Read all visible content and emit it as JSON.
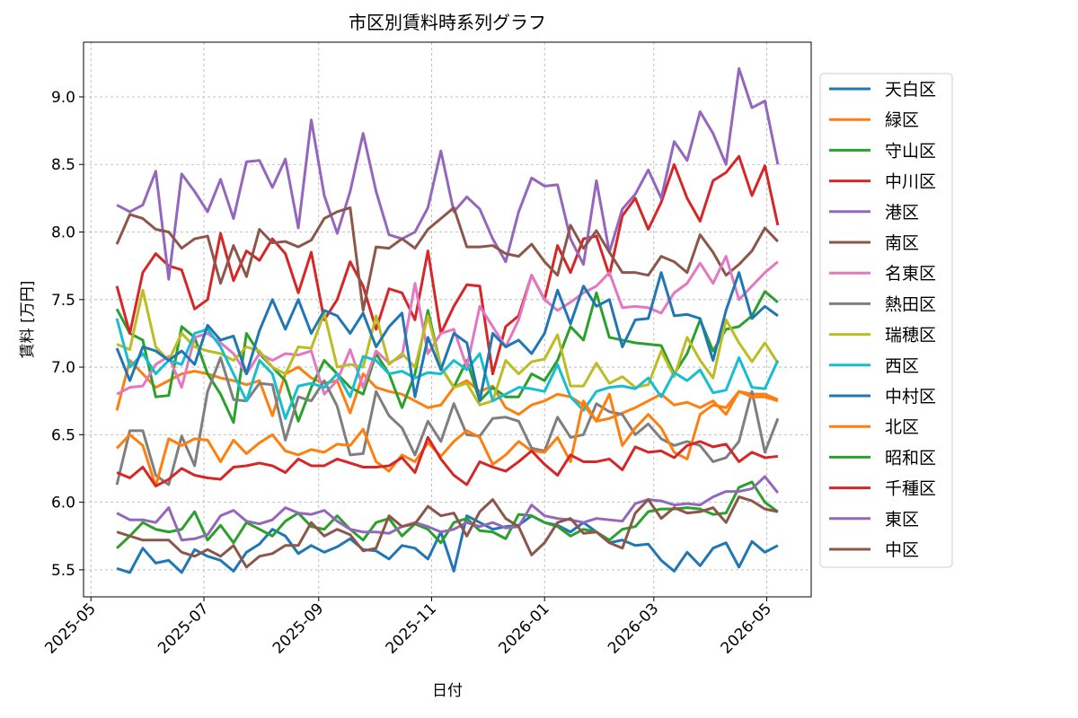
{
  "chart_data": {
    "type": "line",
    "title": "市区別賃料時系列グラフ",
    "xlabel": "日付",
    "ylabel": "賃料 [万円]",
    "x": [
      "2025-05-15",
      "2025-05-22",
      "2025-05-29",
      "2025-06-05",
      "2025-06-12",
      "2025-06-19",
      "2025-06-26",
      "2025-07-03",
      "2025-07-10",
      "2025-07-17",
      "2025-07-24",
      "2025-07-31",
      "2025-08-07",
      "2025-08-14",
      "2025-08-21",
      "2025-08-28",
      "2025-09-04",
      "2025-09-11",
      "2025-09-18",
      "2025-09-25",
      "2025-10-02",
      "2025-10-09",
      "2025-10-16",
      "2025-10-23",
      "2025-10-30",
      "2025-11-06",
      "2025-11-13",
      "2025-11-20",
      "2025-11-27",
      "2025-12-04",
      "2025-12-11",
      "2025-12-18",
      "2025-12-25",
      "2026-01-01",
      "2026-01-08",
      "2026-01-15",
      "2026-01-22",
      "2026-01-29",
      "2026-02-05",
      "2026-02-12",
      "2026-02-19",
      "2026-02-26",
      "2026-03-05",
      "2026-03-12",
      "2026-03-19",
      "2026-03-26",
      "2026-04-02",
      "2026-04-09",
      "2026-04-16",
      "2026-04-23",
      "2026-04-30",
      "2026-05-07"
    ],
    "xlim": [
      "2025-04-27",
      "2026-05-25"
    ],
    "xticks": [
      {
        "value": "2025-05-01",
        "label": "2025-05"
      },
      {
        "value": "2025-07-01",
        "label": "2025-07"
      },
      {
        "value": "2025-09-01",
        "label": "2025-09"
      },
      {
        "value": "2025-11-01",
        "label": "2025-11"
      },
      {
        "value": "2026-01-01",
        "label": "2026-01"
      },
      {
        "value": "2026-03-01",
        "label": "2026-03"
      },
      {
        "value": "2026-05-01",
        "label": "2026-05"
      }
    ],
    "ylim": [
      5.3,
      9.405
    ],
    "yticks": [
      5.5,
      {
        "value": 6,
        "label": "6.0"
      },
      6.5,
      {
        "value": 7,
        "label": "7.0"
      },
      7.5,
      {
        "value": 8,
        "label": "8.0"
      },
      8.5,
      {
        "value": 9,
        "label": "9.0"
      }
    ],
    "grid": true,
    "legend": "outside right",
    "series": [
      {
        "name": "天白区",
        "color": "#1f77b4",
        "values": [
          5.51,
          5.48,
          5.66,
          5.55,
          5.57,
          5.48,
          5.65,
          5.6,
          5.57,
          5.49,
          5.63,
          5.69,
          5.8,
          5.75,
          5.62,
          5.68,
          5.63,
          5.67,
          5.73,
          5.65,
          5.64,
          5.58,
          5.68,
          5.66,
          5.58,
          5.78,
          5.49,
          5.9,
          5.85,
          5.8,
          5.82,
          5.83,
          5.9,
          5.85,
          5.83,
          5.78,
          5.85,
          5.78,
          5.7,
          5.72,
          5.68,
          5.69,
          5.57,
          5.49,
          5.63,
          5.53,
          5.66,
          5.7,
          5.52,
          5.71,
          5.63,
          5.68
        ]
      },
      {
        "name": "緑区",
        "color": "#ff7f0e",
        "values": [
          6.68,
          7.05,
          6.95,
          6.85,
          6.9,
          6.95,
          6.97,
          6.95,
          6.92,
          6.9,
          6.87,
          6.9,
          6.64,
          6.95,
          7.0,
          6.92,
          6.88,
          6.9,
          6.66,
          6.95,
          6.85,
          6.82,
          6.8,
          6.75,
          6.7,
          6.72,
          6.85,
          6.9,
          6.82,
          6.86,
          6.7,
          6.65,
          6.72,
          6.75,
          6.8,
          6.78,
          6.72,
          6.6,
          6.62,
          6.66,
          6.7,
          6.75,
          6.8,
          6.72,
          6.74,
          6.7,
          6.75,
          6.65,
          6.82,
          6.8,
          6.8,
          6.76
        ]
      },
      {
        "name": "守山区",
        "color": "#2ca02c",
        "values": [
          7.43,
          7.25,
          7.2,
          6.78,
          6.79,
          7.3,
          7.22,
          6.95,
          6.8,
          6.59,
          7.25,
          7.1,
          7.0,
          6.9,
          6.6,
          6.85,
          7.05,
          6.95,
          6.85,
          6.8,
          7.1,
          6.95,
          6.7,
          6.95,
          7.42,
          7.0,
          6.85,
          7.05,
          6.75,
          6.85,
          6.78,
          6.78,
          6.95,
          6.9,
          7.05,
          7.3,
          7.2,
          7.55,
          7.22,
          7.2,
          7.18,
          7.17,
          7.16,
          6.95,
          7.1,
          7.35,
          7.12,
          7.28,
          7.3,
          7.38,
          7.56,
          7.48
        ]
      },
      {
        "name": "中川区",
        "color": "#d62728",
        "values": [
          7.6,
          7.25,
          7.7,
          7.84,
          7.75,
          7.72,
          7.43,
          7.5,
          7.99,
          7.64,
          7.86,
          7.79,
          7.95,
          7.84,
          7.55,
          7.85,
          7.35,
          7.5,
          7.78,
          7.6,
          7.28,
          7.58,
          7.55,
          7.35,
          7.86,
          7.25,
          7.45,
          7.61,
          7.6,
          6.95,
          7.3,
          7.38,
          7.68,
          7.5,
          7.9,
          7.7,
          7.95,
          7.97,
          7.68,
          8.12,
          8.25,
          8.02,
          8.22,
          8.5,
          8.25,
          8.08,
          8.38,
          8.44,
          8.56,
          8.27,
          8.49,
          8.05
        ]
      },
      {
        "name": "港区",
        "color": "#9467bd",
        "values": [
          8.2,
          8.15,
          8.2,
          8.45,
          7.65,
          8.43,
          8.3,
          8.15,
          8.39,
          8.1,
          8.52,
          8.53,
          8.33,
          8.54,
          8.03,
          8.83,
          8.27,
          7.99,
          8.3,
          8.73,
          8.3,
          7.98,
          7.95,
          8.0,
          8.18,
          8.6,
          8.15,
          8.26,
          8.17,
          7.95,
          7.78,
          8.15,
          8.4,
          8.34,
          8.35,
          7.95,
          7.76,
          8.38,
          7.85,
          8.17,
          8.28,
          8.46,
          8.25,
          8.67,
          8.53,
          8.89,
          8.73,
          8.5,
          9.21,
          8.92,
          8.97,
          8.5
        ]
      },
      {
        "name": "南区",
        "color": "#8c564b",
        "values": [
          7.91,
          8.13,
          8.1,
          8.02,
          8.0,
          7.88,
          7.95,
          7.97,
          7.62,
          7.9,
          7.67,
          8.02,
          7.92,
          7.93,
          7.89,
          7.94,
          8.1,
          8.15,
          8.18,
          7.42,
          7.89,
          7.88,
          7.95,
          7.88,
          8.02,
          8.1,
          8.18,
          7.89,
          7.89,
          7.9,
          7.84,
          7.82,
          7.91,
          7.78,
          7.68,
          8.05,
          7.88,
          8.01,
          7.85,
          7.7,
          7.7,
          7.68,
          7.82,
          7.78,
          7.7,
          7.98,
          7.85,
          7.68,
          7.76,
          7.86,
          8.03,
          7.93
        ]
      },
      {
        "name": "名東区",
        "color": "#e377c2",
        "values": [
          6.8,
          6.85,
          6.86,
          7.02,
          7.08,
          6.85,
          7.22,
          7.25,
          7.18,
          7.1,
          6.95,
          7.1,
          7.05,
          7.1,
          7.09,
          7.12,
          6.8,
          6.9,
          7.13,
          6.85,
          7.12,
          7.03,
          7.08,
          7.62,
          7.1,
          7.25,
          7.28,
          7.0,
          7.45,
          7.3,
          7.15,
          7.35,
          7.68,
          7.5,
          7.42,
          7.48,
          7.55,
          7.6,
          7.7,
          7.44,
          7.45,
          7.44,
          7.4,
          7.55,
          7.62,
          7.77,
          7.62,
          7.82,
          7.5,
          7.6,
          7.7,
          7.78
        ]
      },
      {
        "name": "熱田区",
        "color": "#7f7f7f",
        "values": [
          6.13,
          6.53,
          6.53,
          6.2,
          6.13,
          6.49,
          6.27,
          6.82,
          7.07,
          6.76,
          6.75,
          6.88,
          6.87,
          6.46,
          6.78,
          6.75,
          6.9,
          6.71,
          6.35,
          6.36,
          6.82,
          6.64,
          6.55,
          6.35,
          6.6,
          6.45,
          6.73,
          6.5,
          6.49,
          6.62,
          6.63,
          6.6,
          6.4,
          6.38,
          6.63,
          6.48,
          6.5,
          6.73,
          6.67,
          6.65,
          6.5,
          6.58,
          6.47,
          6.42,
          6.45,
          6.42,
          6.3,
          6.33,
          6.45,
          6.82,
          6.37,
          6.62
        ]
      },
      {
        "name": "瑞穂区",
        "color": "#bcbd22",
        "values": [
          7.17,
          7.13,
          7.57,
          7.15,
          7.05,
          7.25,
          7.15,
          7.12,
          7.1,
          7.05,
          7.15,
          7.12,
          7.0,
          6.95,
          7.15,
          7.14,
          7.4,
          7.0,
          7.02,
          7.0,
          7.38,
          7.02,
          7.1,
          7.0,
          7.38,
          7.0,
          6.85,
          6.88,
          6.72,
          6.75,
          7.05,
          6.95,
          7.04,
          7.06,
          7.24,
          6.86,
          6.86,
          7.03,
          6.88,
          6.93,
          6.85,
          6.87,
          7.12,
          6.93,
          7.22,
          7.05,
          6.92,
          7.35,
          7.18,
          7.04,
          7.18,
          7.03
        ]
      },
      {
        "name": "西区",
        "color": "#17becf",
        "values": [
          7.36,
          7.0,
          7.1,
          6.95,
          7.05,
          7.02,
          7.25,
          7.28,
          7.15,
          6.95,
          6.75,
          7.05,
          6.95,
          6.62,
          6.86,
          6.88,
          6.85,
          6.95,
          6.78,
          7.08,
          7.05,
          6.95,
          6.97,
          6.92,
          6.96,
          6.95,
          7.05,
          6.98,
          7.1,
          6.75,
          6.8,
          6.85,
          6.84,
          6.82,
          7.02,
          6.78,
          6.68,
          6.82,
          6.85,
          6.86,
          6.84,
          6.92,
          6.78,
          6.96,
          6.9,
          6.98,
          6.81,
          6.83,
          7.07,
          6.85,
          6.84,
          7.05
        ]
      },
      {
        "name": "中村区",
        "color": "#1f77b4",
        "values": [
          7.14,
          6.9,
          7.15,
          7.12,
          7.05,
          7.12,
          7.02,
          7.31,
          7.2,
          7.23,
          6.95,
          7.27,
          7.5,
          7.28,
          7.5,
          7.25,
          7.42,
          7.38,
          7.25,
          7.4,
          7.15,
          7.3,
          7.4,
          6.78,
          7.22,
          6.98,
          7.25,
          7.18,
          6.75,
          7.25,
          7.15,
          7.2,
          7.1,
          7.25,
          7.57,
          7.32,
          7.6,
          7.45,
          7.5,
          7.15,
          7.35,
          7.36,
          7.7,
          7.38,
          7.39,
          7.36,
          7.05,
          7.42,
          7.7,
          7.36,
          7.45,
          7.38
        ]
      },
      {
        "name": "北区",
        "color": "#ff7f0e",
        "values": [
          6.4,
          6.5,
          6.42,
          6.12,
          6.47,
          6.42,
          6.47,
          6.46,
          6.3,
          6.46,
          6.36,
          6.44,
          6.5,
          6.38,
          6.35,
          6.39,
          6.37,
          6.43,
          6.42,
          6.54,
          6.3,
          6.23,
          6.35,
          6.3,
          6.44,
          6.34,
          6.45,
          6.53,
          6.48,
          6.28,
          6.35,
          6.45,
          6.38,
          6.37,
          6.48,
          6.3,
          6.75,
          6.6,
          6.8,
          6.42,
          6.55,
          6.65,
          6.55,
          6.37,
          6.32,
          6.65,
          6.72,
          6.7,
          6.82,
          6.78,
          6.78,
          6.75
        ]
      },
      {
        "name": "昭和区",
        "color": "#2ca02c",
        "values": [
          5.66,
          5.75,
          5.85,
          5.8,
          5.78,
          5.8,
          5.93,
          5.72,
          5.83,
          5.7,
          5.85,
          5.8,
          5.75,
          5.86,
          5.92,
          5.82,
          5.8,
          5.9,
          5.8,
          5.72,
          5.85,
          5.88,
          5.75,
          5.84,
          5.8,
          5.7,
          5.85,
          5.88,
          5.79,
          5.78,
          5.73,
          5.91,
          5.9,
          5.85,
          5.82,
          5.75,
          5.8,
          5.78,
          5.72,
          5.8,
          5.82,
          5.93,
          5.95,
          5.95,
          5.96,
          5.95,
          5.91,
          5.92,
          6.11,
          6.15,
          6.0,
          5.93
        ]
      },
      {
        "name": "千種区",
        "color": "#d62728",
        "values": [
          6.22,
          6.18,
          6.26,
          6.12,
          6.17,
          6.25,
          6.2,
          6.18,
          6.17,
          6.26,
          6.27,
          6.29,
          6.27,
          6.22,
          6.32,
          6.27,
          6.27,
          6.32,
          6.29,
          6.26,
          6.26,
          6.27,
          6.33,
          6.22,
          6.48,
          6.32,
          6.2,
          6.13,
          6.3,
          6.26,
          6.23,
          6.3,
          6.38,
          6.28,
          6.2,
          6.35,
          6.3,
          6.3,
          6.32,
          6.24,
          6.41,
          6.37,
          6.38,
          6.33,
          6.42,
          6.45,
          6.41,
          6.43,
          6.3,
          6.37,
          6.33,
          6.34
        ]
      },
      {
        "name": "東区",
        "color": "#9467bd",
        "values": [
          5.92,
          5.87,
          5.87,
          5.85,
          5.96,
          5.72,
          5.73,
          5.76,
          5.9,
          5.94,
          5.86,
          5.84,
          5.87,
          5.96,
          5.92,
          5.91,
          5.94,
          5.86,
          5.8,
          5.78,
          5.78,
          5.77,
          5.82,
          5.85,
          5.82,
          5.78,
          5.8,
          5.85,
          5.82,
          5.85,
          5.81,
          5.82,
          5.98,
          5.9,
          5.88,
          5.87,
          5.85,
          5.88,
          5.87,
          5.86,
          5.99,
          6.02,
          6.01,
          5.98,
          5.99,
          5.98,
          6.04,
          6.08,
          6.08,
          6.1,
          6.19,
          6.07
        ]
      },
      {
        "name": "中区",
        "color": "#8c564b",
        "values": [
          5.78,
          5.75,
          5.72,
          5.72,
          5.72,
          5.63,
          5.6,
          5.65,
          5.6,
          5.68,
          5.52,
          5.6,
          5.62,
          5.68,
          5.68,
          5.85,
          5.75,
          5.8,
          5.76,
          5.64,
          5.66,
          5.9,
          5.82,
          5.84,
          5.97,
          5.9,
          5.92,
          5.75,
          5.93,
          6.02,
          5.88,
          5.82,
          5.61,
          5.7,
          5.85,
          5.88,
          5.77,
          5.78,
          5.7,
          5.66,
          5.92,
          6.02,
          5.88,
          5.96,
          5.92,
          5.93,
          5.96,
          5.85,
          6.04,
          6.01,
          5.95,
          5.93
        ]
      }
    ]
  }
}
